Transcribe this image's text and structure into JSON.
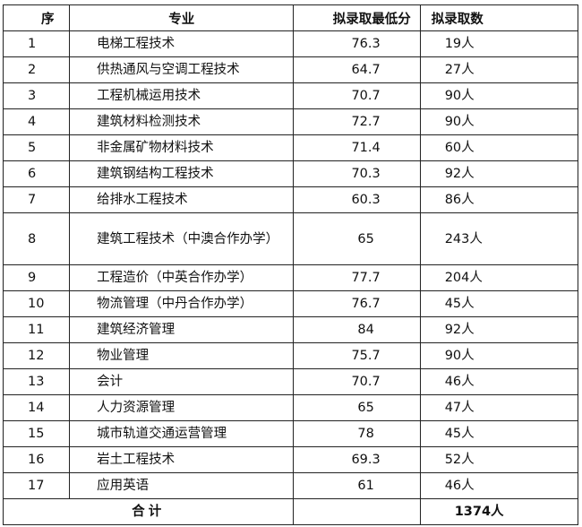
{
  "headers": {
    "seq": "序",
    "major": "专业",
    "min_score": "拟录取最低分",
    "count": "拟录取数"
  },
  "rows": [
    {
      "seq": "1",
      "major": "电梯工程技术",
      "score": "76.3",
      "count": "19人"
    },
    {
      "seq": "2",
      "major": "供热通风与空调工程技术",
      "score": "64.7",
      "count": "27人"
    },
    {
      "seq": "3",
      "major": "工程机械运用技术",
      "score": "70.7",
      "count": "90人"
    },
    {
      "seq": "4",
      "major": "建筑材料检测技术",
      "score": "72.7",
      "count": "90人"
    },
    {
      "seq": "5",
      "major": "非金属矿物材料技术",
      "score": "71.4",
      "count": "60人"
    },
    {
      "seq": "6",
      "major": "建筑钢结构工程技术",
      "score": "70.3",
      "count": "92人"
    },
    {
      "seq": "7",
      "major": "给排水工程技术",
      "score": "60.3",
      "count": "86人"
    },
    {
      "seq": "8",
      "major": "建筑工程技术（中澳合作办学）",
      "score": "65",
      "count": "243人"
    },
    {
      "seq": "9",
      "major": "工程造价（中英合作办学）",
      "score": "77.7",
      "count": "204人"
    },
    {
      "seq": "10",
      "major": "物流管理（中丹合作办学）",
      "score": "76.7",
      "count": "45人"
    },
    {
      "seq": "11",
      "major": "建筑经济管理",
      "score": "84",
      "count": "92人"
    },
    {
      "seq": "12",
      "major": "物业管理",
      "score": "75.7",
      "count": "90人"
    },
    {
      "seq": "13",
      "major": "会计",
      "score": "70.7",
      "count": "46人"
    },
    {
      "seq": "14",
      "major": "人力资源管理",
      "score": "65",
      "count": "47人"
    },
    {
      "seq": "15",
      "major": "城市轨道交通运营管理",
      "score": "78",
      "count": "45人"
    },
    {
      "seq": "16",
      "major": "岩土工程技术",
      "score": "69.3",
      "count": "52人"
    },
    {
      "seq": "17",
      "major": "应用英语",
      "score": "61",
      "count": "46人"
    }
  ],
  "total": {
    "label": "合计",
    "count": "1374人"
  }
}
